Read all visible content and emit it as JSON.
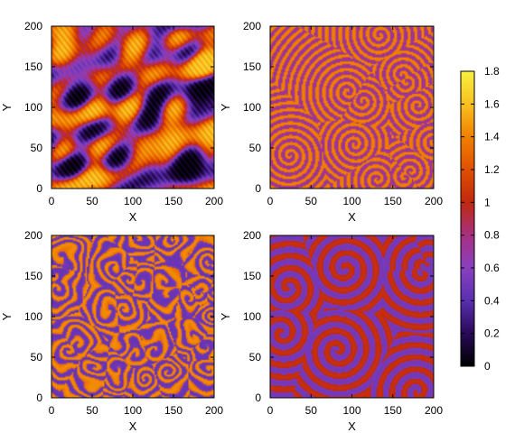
{
  "chart_data": {
    "type": "heatmap",
    "panels": [
      {
        "id": "top-left",
        "xlabel": "X",
        "ylabel": "Y",
        "xlim": [
          0,
          200
        ],
        "ylim": [
          0,
          200
        ],
        "xticks": [
          "0",
          "50",
          "100",
          "150",
          "200"
        ],
        "yticks": [
          "0",
          "50",
          "100",
          "150",
          "200"
        ],
        "pattern": "turbulent",
        "value_range": [
          0.1,
          1.8
        ]
      },
      {
        "id": "top-right",
        "xlabel": "X",
        "ylabel": "Y",
        "xlim": [
          0,
          200
        ],
        "ylim": [
          0,
          200
        ],
        "xticks": [
          "0",
          "50",
          "100",
          "150",
          "200"
        ],
        "yticks": [
          "0",
          "50",
          "100",
          "150",
          "200"
        ],
        "pattern": "spiral-waves",
        "value_range": [
          0.6,
          1.4
        ]
      },
      {
        "id": "bottom-left",
        "xlabel": "X",
        "ylabel": "Y",
        "xlim": [
          0,
          200
        ],
        "ylim": [
          0,
          200
        ],
        "xticks": [
          "0",
          "50",
          "100",
          "150",
          "200"
        ],
        "yticks": [
          "0",
          "50",
          "100",
          "150",
          "200"
        ],
        "pattern": "labyrinth",
        "value_range": [
          0.4,
          1.5
        ]
      },
      {
        "id": "bottom-right",
        "xlabel": "X",
        "ylabel": "Y",
        "xlim": [
          0,
          200
        ],
        "ylim": [
          0,
          200
        ],
        "xticks": [
          "0",
          "50",
          "100",
          "150",
          "200"
        ],
        "yticks": [
          "0",
          "50",
          "100",
          "150",
          "200"
        ],
        "pattern": "large-spirals",
        "value_range": [
          0.4,
          1.0
        ]
      }
    ],
    "colorbar": {
      "range": [
        0,
        1.8
      ],
      "ticks": [
        "0",
        "0.2",
        "0.4",
        "0.6",
        "0.8",
        "1",
        "1.2",
        "1.4",
        "1.6",
        "1.8"
      ],
      "tick_values": [
        0,
        0.2,
        0.4,
        0.6,
        0.8,
        1.0,
        1.2,
        1.4,
        1.6,
        1.8
      ],
      "colormap": "black-purple-red-orange-yellow",
      "stops": [
        "#000000",
        "#2a0a5a",
        "#5a30b0",
        "#8a40c0",
        "#a83080",
        "#c02810",
        "#e05000",
        "#f08000",
        "#f8c020",
        "#f8f040"
      ]
    },
    "grid": false
  }
}
